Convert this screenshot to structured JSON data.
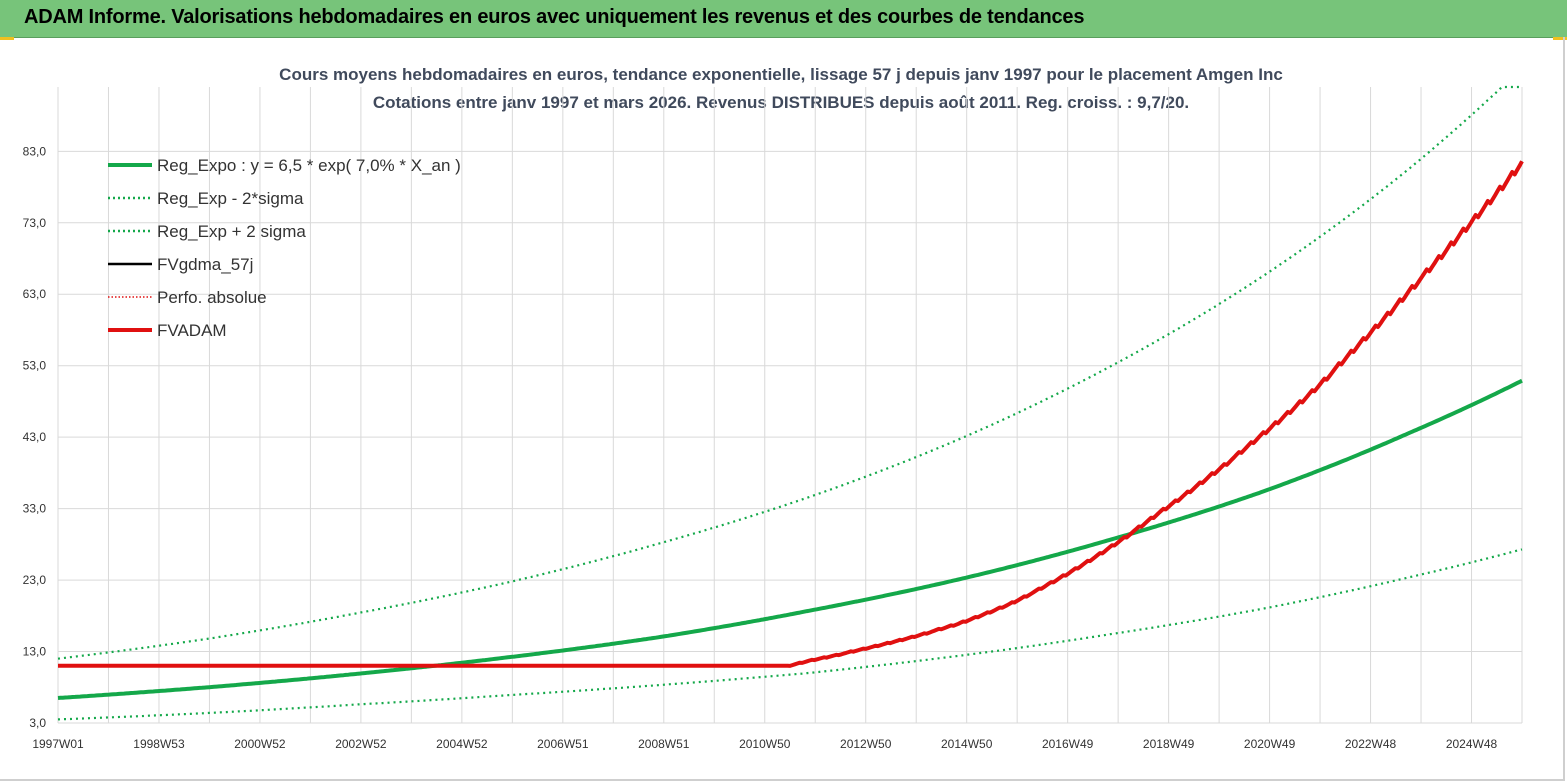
{
  "banner": {
    "title": "ADAM Informe. Valorisations hebdomadaires en euros avec uniquement les revenus et des courbes de tendances"
  },
  "colors": {
    "banner": "#77c47a",
    "reg_green": "#14a84a",
    "red": "#e01010",
    "black": "#000000",
    "grid": "#d9d9d9"
  },
  "chart_data": {
    "type": "line",
    "title": "Cours moyens hebdomadaires en euros, tendance exponentielle, lissage 57 j depuis janv 1997 pour le placement Amgen Inc",
    "subtitle": "Cotations entre janv 1997 et mars 2026. Revenus DISTRIBUES depuis août 2011. Reg. croiss. : 9,7/20.",
    "xlabel": "",
    "ylabel": "",
    "x_ticks": [
      "1997W01",
      "1998W53",
      "2000W52",
      "2002W52",
      "2004W52",
      "2006W51",
      "2008W51",
      "2010W50",
      "2012W50",
      "2014W50",
      "2016W49",
      "2018W49",
      "2020W49",
      "2022W48",
      "2024W48"
    ],
    "y_ticks": [
      "3,0",
      "13,0",
      "23,0",
      "33,0",
      "43,0",
      "53,0",
      "63,0",
      "73,0",
      "83,0"
    ],
    "ylim": [
      3,
      92
    ],
    "xlim_years": [
      1997.0,
      2026.25
    ],
    "grid": true,
    "legend_position": "top-left",
    "legend": [
      {
        "label": "Reg_Expo : y = 6,5 * exp( 7,0% *  X_an )",
        "color": "#14a84a",
        "style": "solid-thick"
      },
      {
        "label": "Reg_Exp - 2*sigma",
        "color": "#14a84a",
        "style": "dotted"
      },
      {
        "label": "Reg_Exp + 2 sigma",
        "color": "#14a84a",
        "style": "dotted"
      },
      {
        "label": "FVgdma_57j",
        "color": "#000000",
        "style": "solid"
      },
      {
        "label": "Perfo. absolue",
        "color": "#e01010",
        "style": "dotted-thin"
      },
      {
        "label": "FVADAM",
        "color": "#e01010",
        "style": "solid-thick"
      }
    ],
    "series": [
      {
        "name": "Reg_Expo : y = 6,5 * exp( 7,0% *  X_an )",
        "x": [
          1997,
          2000,
          2003,
          2006,
          2009,
          2012,
          2015,
          2018,
          2021,
          2024,
          2026.25
        ],
        "values": [
          6.5,
          8.0,
          9.9,
          12.2,
          15.0,
          18.7,
          23.1,
          28.6,
          35.2,
          43.6,
          50.9
        ]
      },
      {
        "name": "Reg_Exp - 2*sigma",
        "x": [
          1997,
          2000,
          2003,
          2006,
          2009,
          2012,
          2015,
          2018,
          2021,
          2024,
          2026.25
        ],
        "values": [
          3.5,
          4.4,
          5.6,
          6.9,
          8.3,
          10.0,
          12.4,
          15.4,
          18.9,
          23.4,
          27.3
        ]
      },
      {
        "name": "Reg_Exp + 2 sigma",
        "x": [
          1997,
          2000,
          2003,
          2006,
          2009,
          2012,
          2015,
          2018,
          2021,
          2024,
          2025.85,
          2026.25
        ],
        "values": [
          12.0,
          14.8,
          18.4,
          22.7,
          28.1,
          34.6,
          42.7,
          52.8,
          65.2,
          80.6,
          92.0,
          92.0
        ]
      },
      {
        "name": "FVgdma_57j",
        "x": [
          1997,
          2011.6,
          2012,
          2013,
          2014,
          2015,
          2016,
          2017,
          2018,
          2019,
          2020,
          2021,
          2022,
          2023,
          2024,
          2025,
          2026.25
        ],
        "values": [
          11.0,
          11.0,
          11.7,
          13.2,
          14.9,
          16.9,
          19.6,
          23.2,
          27.5,
          32.4,
          37.5,
          43.0,
          49.0,
          56.0,
          63.5,
          71.2,
          81.5
        ]
      },
      {
        "name": "Perfo. absolue",
        "x": [
          1997,
          2011.6,
          2012,
          2013,
          2014,
          2015,
          2016,
          2017,
          2018,
          2019,
          2020,
          2021,
          2022,
          2023,
          2024,
          2025,
          2026.25
        ],
        "values": [
          11.0,
          11.0,
          11.7,
          13.2,
          14.9,
          16.9,
          19.6,
          23.2,
          27.5,
          32.4,
          37.5,
          43.0,
          49.0,
          56.0,
          63.5,
          71.2,
          81.5
        ]
      },
      {
        "name": "FVADAM",
        "x": [
          1997,
          2011.6,
          2012,
          2013,
          2014,
          2015,
          2016,
          2017,
          2018,
          2019,
          2020,
          2021,
          2022,
          2023,
          2024,
          2025,
          2026.25
        ],
        "values": [
          11.0,
          11.0,
          11.7,
          13.2,
          14.9,
          16.9,
          19.6,
          23.2,
          27.5,
          32.4,
          37.5,
          43.0,
          49.0,
          56.0,
          63.5,
          71.2,
          81.5
        ]
      }
    ]
  }
}
